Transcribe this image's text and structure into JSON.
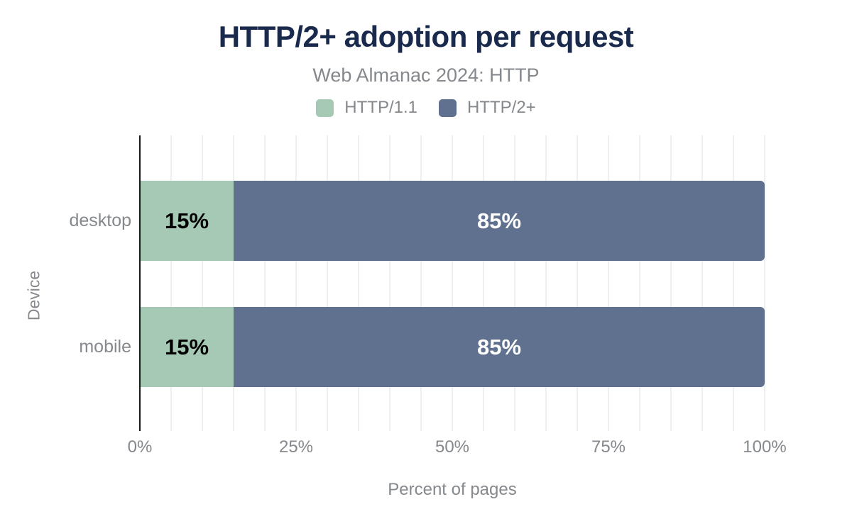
{
  "chart_data": {
    "type": "bar",
    "orientation": "horizontal",
    "stacked": true,
    "title": "HTTP/2+ adoption per request",
    "subtitle": "Web Almanac 2024: HTTP",
    "xlabel": "Percent of pages",
    "ylabel": "Device",
    "categories": [
      "desktop",
      "mobile"
    ],
    "series": [
      {
        "name": "HTTP/1.1",
        "color": "#a5c9b4",
        "values": [
          15,
          15
        ],
        "labels": [
          "15%",
          "15%"
        ],
        "label_color": "#000000"
      },
      {
        "name": "HTTP/2+",
        "color": "#5f718e",
        "values": [
          85,
          85
        ],
        "labels": [
          "85%",
          "85%"
        ],
        "label_color": "#ffffff"
      }
    ],
    "xlim": [
      0,
      100
    ],
    "xticks": [
      "0%",
      "25%",
      "50%",
      "75%",
      "100%"
    ],
    "grid": true,
    "grid_step_percent": 5,
    "legend_position": "top"
  },
  "colors": {
    "title": "#1a2a4d",
    "text": "#85888c",
    "axis": "#1a1a1a",
    "gridline": "#efeff0",
    "background": "#ffffff"
  }
}
